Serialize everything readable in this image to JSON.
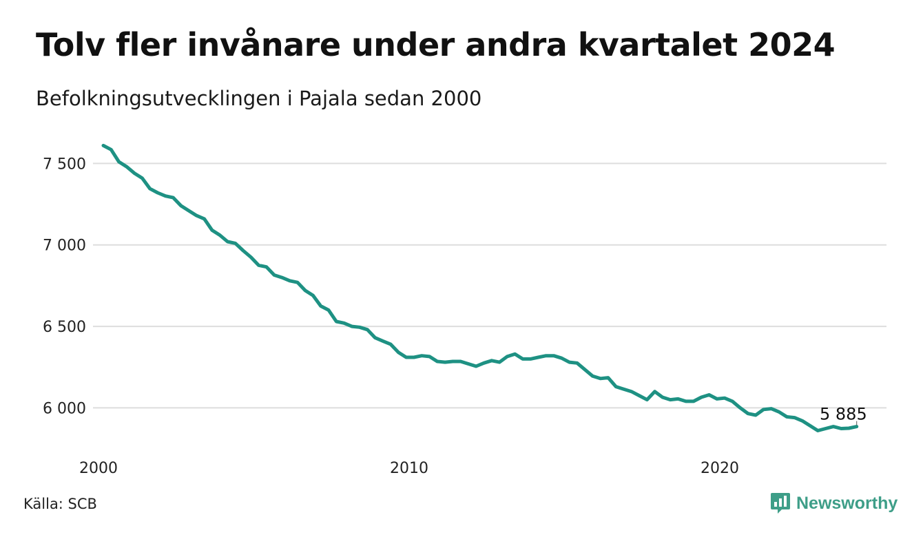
{
  "header": {
    "title": "Tolv fler invånare under andra kvartalet 2024",
    "subtitle": "Befolkningsutvecklingen i Pajala sedan 2000"
  },
  "footer": {
    "source": "Källa: SCB",
    "brand": "Newsworthy"
  },
  "colors": {
    "line": "#1e9183",
    "grid": "#dddddd",
    "brand": "#3e9e88"
  },
  "icons": {
    "brand_logo": "newsworthy-logo-icon"
  },
  "chart_data": {
    "type": "line",
    "x_label_ticks": [
      {
        "value": 2000,
        "label": "2000"
      },
      {
        "value": 2010,
        "label": "2010"
      },
      {
        "value": 2020,
        "label": "2020"
      }
    ],
    "y_ticks": [
      {
        "value": 6000,
        "label": "6 000"
      },
      {
        "value": 6500,
        "label": "6 500"
      },
      {
        "value": 7000,
        "label": "7 000"
      },
      {
        "value": 7500,
        "label": "7 500"
      }
    ],
    "xlim": [
      2000,
      2024.5
    ],
    "ylim": [
      5820,
      7620
    ],
    "grid": true,
    "end_label": "5 885",
    "series": [
      {
        "x": [
          2000.0,
          2000.25,
          2000.5,
          2000.75,
          2001.0,
          2001.25,
          2001.5,
          2001.75,
          2002.0,
          2002.25,
          2002.5,
          2002.75,
          2003.0,
          2003.25,
          2003.5,
          2003.75,
          2004.0,
          2004.25,
          2004.5,
          2004.75,
          2005.0,
          2005.25,
          2005.5,
          2005.75,
          2006.0,
          2006.25,
          2006.5,
          2006.75,
          2007.0,
          2007.25,
          2007.5,
          2007.75,
          2008.0,
          2008.25,
          2008.5,
          2008.75,
          2009.0,
          2009.25,
          2009.5,
          2009.75,
          2010.0,
          2010.25,
          2010.5,
          2010.75,
          2011.0,
          2011.25,
          2011.5,
          2011.75,
          2012.0,
          2012.25,
          2012.5,
          2012.75,
          2013.0,
          2013.25,
          2013.5,
          2013.75,
          2014.0,
          2014.25,
          2014.5,
          2014.75,
          2015.0,
          2015.25,
          2015.5,
          2015.75,
          2016.0,
          2016.25,
          2016.5,
          2016.75,
          2017.0,
          2017.25,
          2017.5,
          2017.75,
          2018.0,
          2018.25,
          2018.5,
          2018.75,
          2019.0,
          2019.25,
          2019.5,
          2019.75,
          2020.0,
          2020.25,
          2020.5,
          2020.75,
          2021.0,
          2021.25,
          2021.5,
          2021.75,
          2022.0,
          2022.25,
          2022.5,
          2022.75,
          2023.0,
          2023.25,
          2023.5,
          2023.75,
          2024.0,
          2024.25
        ],
        "values": [
          7610,
          7585,
          7510,
          7480,
          7440,
          7410,
          7345,
          7320,
          7300,
          7290,
          7240,
          7210,
          7180,
          7160,
          7090,
          7060,
          7020,
          7010,
          6965,
          6925,
          6875,
          6865,
          6815,
          6800,
          6780,
          6770,
          6720,
          6690,
          6625,
          6600,
          6530,
          6520,
          6500,
          6495,
          6480,
          6430,
          6410,
          6390,
          6340,
          6310,
          6310,
          6320,
          6315,
          6285,
          6280,
          6285,
          6285,
          6270,
          6255,
          6275,
          6290,
          6280,
          6315,
          6330,
          6300,
          6300,
          6310,
          6320,
          6320,
          6305,
          6280,
          6275,
          6235,
          6195,
          6180,
          6185,
          6130,
          6115,
          6100,
          6075,
          6050,
          6100,
          6065,
          6050,
          6055,
          6040,
          6040,
          6065,
          6080,
          6055,
          6060,
          6040,
          6000,
          5965,
          5955,
          5990,
          5995,
          5975,
          5945,
          5940,
          5920,
          5890,
          5860,
          5873,
          5885,
          5873,
          5875,
          5885
        ]
      }
    ]
  }
}
